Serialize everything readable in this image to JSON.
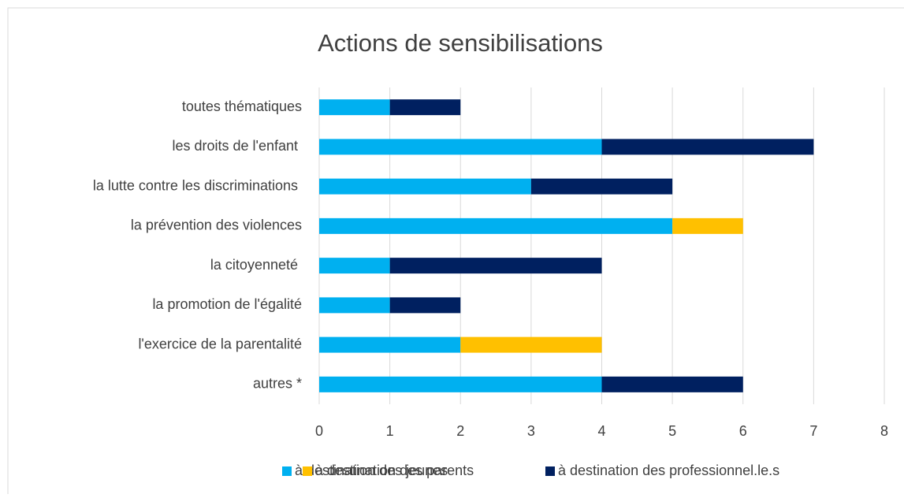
{
  "chart_data": {
    "type": "bar",
    "orientation": "horizontal",
    "stacked": true,
    "title": "Actions de sensibilisations",
    "categories": [
      "toutes thématiques",
      "les droits de l'enfant ",
      "la lutte contre les discriminations ",
      "la prévention des violences",
      "la citoyenneté ",
      "la promotion de l'égalité",
      "l'exercice de la parentalité",
      "autres *"
    ],
    "series": [
      {
        "name": "à destination des jeunes",
        "color": "#00b0f0",
        "values": [
          1,
          4,
          3,
          5,
          1,
          1,
          2,
          4
        ]
      },
      {
        "name": "à destination des parents",
        "color": "#ffc000",
        "values": [
          0,
          0,
          0,
          1,
          0,
          0,
          2,
          0
        ]
      },
      {
        "name": "à destination des professionnel.le.s",
        "color": "#002060",
        "values": [
          1,
          3,
          2,
          0,
          3,
          1,
          0,
          2
        ]
      }
    ],
    "xlim": [
      0,
      8
    ],
    "xticks": [
      0,
      1,
      2,
      3,
      4,
      5,
      6,
      7,
      8
    ],
    "grid": true,
    "legend": "bottom"
  }
}
